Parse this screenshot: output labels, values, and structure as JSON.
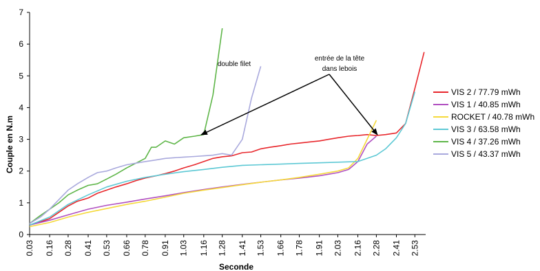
{
  "chart_data": {
    "type": "line",
    "xlabel": "Seconde",
    "ylabel": "Couple en N.m",
    "ylim": [
      0,
      7
    ],
    "yticks": [
      0,
      1,
      2,
      3,
      4,
      5,
      6,
      7
    ],
    "xlim": [
      0.03,
      2.6
    ],
    "xticks": [
      "0.03",
      "0.16",
      "0.28",
      "0.41",
      "0.53",
      "0.66",
      "0.78",
      "0.91",
      "1.03",
      "1.16",
      "1.28",
      "1.41",
      "1.53",
      "1.66",
      "1.78",
      "1.91",
      "2.03",
      "2.16",
      "2.28",
      "2.41",
      "2.53"
    ],
    "grid": false,
    "legend_position": "right",
    "series": [
      {
        "name": "VIS 2 / 77.79 mWh",
        "color": "#e8262b",
        "x": [
          0.03,
          0.1,
          0.16,
          0.22,
          0.28,
          0.34,
          0.41,
          0.47,
          0.53,
          0.59,
          0.66,
          0.72,
          0.78,
          0.85,
          0.91,
          0.97,
          1.03,
          1.1,
          1.16,
          1.22,
          1.28,
          1.34,
          1.41,
          1.47,
          1.53,
          1.59,
          1.66,
          1.72,
          1.78,
          1.85,
          1.91,
          1.97,
          2.03,
          2.1,
          2.16,
          2.22,
          2.28,
          2.34,
          2.41,
          2.47,
          2.53,
          2.59
        ],
        "y": [
          0.3,
          0.4,
          0.5,
          0.7,
          0.9,
          1.05,
          1.15,
          1.3,
          1.4,
          1.5,
          1.6,
          1.7,
          1.78,
          1.85,
          1.92,
          2.0,
          2.1,
          2.2,
          2.3,
          2.4,
          2.45,
          2.48,
          2.58,
          2.6,
          2.7,
          2.75,
          2.8,
          2.85,
          2.88,
          2.92,
          2.95,
          3.0,
          3.05,
          3.1,
          3.12,
          3.15,
          3.12,
          3.15,
          3.2,
          3.5,
          4.6,
          5.75
        ]
      },
      {
        "name": "VIS 1 / 40.85 mWh",
        "color": "#b04fc0",
        "x": [
          0.03,
          0.16,
          0.28,
          0.41,
          0.53,
          0.66,
          0.78,
          0.91,
          1.03,
          1.16,
          1.28,
          1.41,
          1.53,
          1.66,
          1.78,
          1.91,
          2.03,
          2.1,
          2.16,
          2.22,
          2.28
        ],
        "y": [
          0.3,
          0.45,
          0.62,
          0.8,
          0.92,
          1.02,
          1.12,
          1.22,
          1.32,
          1.42,
          1.5,
          1.58,
          1.65,
          1.72,
          1.78,
          1.85,
          1.95,
          2.05,
          2.3,
          2.85,
          3.1
        ]
      },
      {
        "name": "ROCKET / 40.78 mWh",
        "color": "#f5d93a",
        "x": [
          0.03,
          0.16,
          0.28,
          0.41,
          0.53,
          0.66,
          0.78,
          0.91,
          1.03,
          1.16,
          1.28,
          1.41,
          1.53,
          1.66,
          1.78,
          1.91,
          2.03,
          2.1,
          2.16,
          2.22,
          2.28
        ],
        "y": [
          0.25,
          0.38,
          0.55,
          0.7,
          0.82,
          0.95,
          1.05,
          1.18,
          1.3,
          1.4,
          1.48,
          1.57,
          1.65,
          1.72,
          1.8,
          1.9,
          2.0,
          2.1,
          2.4,
          3.0,
          3.6
        ]
      },
      {
        "name": "VIS 3 / 63.58 mWh",
        "color": "#5cc8d4",
        "x": [
          0.03,
          0.16,
          0.28,
          0.41,
          0.53,
          0.66,
          0.78,
          0.91,
          1.03,
          1.16,
          1.28,
          1.41,
          1.53,
          1.66,
          1.78,
          1.91,
          2.03,
          2.16,
          2.22,
          2.28,
          2.34,
          2.41,
          2.47,
          2.53
        ],
        "y": [
          0.3,
          0.55,
          0.95,
          1.25,
          1.5,
          1.68,
          1.8,
          1.9,
          1.98,
          2.05,
          2.12,
          2.18,
          2.2,
          2.22,
          2.24,
          2.26,
          2.28,
          2.3,
          2.4,
          2.5,
          2.7,
          3.05,
          3.5,
          4.5
        ]
      },
      {
        "name": "VIS 4 / 37.26 mWh",
        "color": "#5db547",
        "x": [
          0.03,
          0.1,
          0.16,
          0.22,
          0.28,
          0.34,
          0.41,
          0.47,
          0.53,
          0.59,
          0.66,
          0.72,
          0.78,
          0.82,
          0.85,
          0.91,
          0.97,
          1.03,
          1.1,
          1.16,
          1.22,
          1.28
        ],
        "y": [
          0.35,
          0.6,
          0.8,
          1.0,
          1.25,
          1.4,
          1.55,
          1.6,
          1.75,
          1.9,
          2.1,
          2.25,
          2.4,
          2.75,
          2.75,
          2.95,
          2.85,
          3.05,
          3.1,
          3.15,
          4.4,
          6.5
        ]
      },
      {
        "name": "VIS 5 / 43.37 mWh",
        "color": "#a9a9dd",
        "x": [
          0.03,
          0.1,
          0.16,
          0.22,
          0.28,
          0.34,
          0.41,
          0.47,
          0.53,
          0.59,
          0.66,
          0.72,
          0.78,
          0.85,
          0.91,
          0.97,
          1.03,
          1.1,
          1.16,
          1.22,
          1.28,
          1.34,
          1.41,
          1.47,
          1.53
        ],
        "y": [
          0.35,
          0.55,
          0.8,
          1.1,
          1.4,
          1.6,
          1.8,
          1.95,
          2.0,
          2.1,
          2.2,
          2.25,
          2.3,
          2.35,
          2.4,
          2.42,
          2.44,
          2.46,
          2.48,
          2.5,
          2.55,
          2.5,
          3.0,
          4.3,
          5.3
        ]
      }
    ],
    "annotations": {
      "double_filet": "double filet",
      "tete_line1": "entrée de la tête",
      "tete_line2": "dans lebois"
    }
  }
}
